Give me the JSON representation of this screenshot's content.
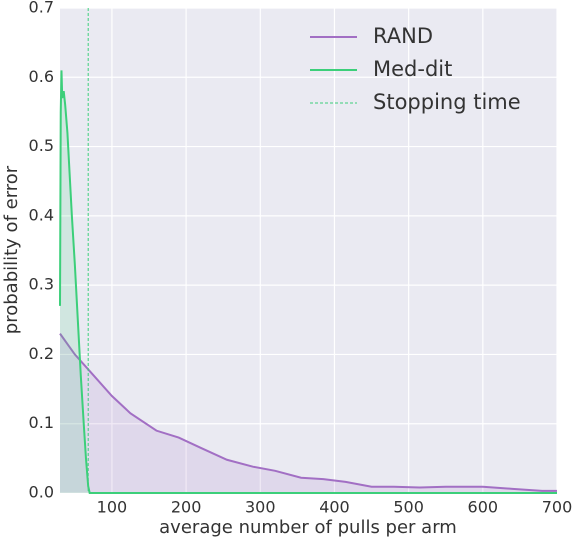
{
  "chart_data": {
    "type": "line",
    "x_label": "average number of pulls per arm",
    "y_label": "probability of error",
    "xlim": [
      30,
      700
    ],
    "ylim": [
      0,
      0.7
    ],
    "xticks": [
      100,
      200,
      300,
      400,
      500,
      600,
      700
    ],
    "yticks": [
      {
        "value": 0,
        "label": "0.0"
      },
      0.1,
      0.2,
      0.3,
      0.4,
      0.5,
      0.6,
      0.7
    ],
    "grid": true,
    "fill_under": true,
    "legend": "upper right",
    "series": [
      {
        "name": "RAND",
        "color": "#a26fc4",
        "x": [
          30,
          50,
          75,
          100,
          125,
          160,
          190,
          220,
          255,
          290,
          320,
          355,
          385,
          415,
          450,
          480,
          515,
          550,
          600,
          640,
          680,
          700
        ],
        "values": [
          0.23,
          0.2,
          0.17,
          0.14,
          0.115,
          0.09,
          0.08,
          0.065,
          0.048,
          0.038,
          0.032,
          0.022,
          0.02,
          0.016,
          0.009,
          0.009,
          0.008,
          0.009,
          0.009,
          0.006,
          0.003,
          0.003
        ]
      },
      {
        "name": "Med-dit",
        "color": "#3ccf7a",
        "x": [
          30,
          31,
          32,
          33,
          35,
          37,
          40,
          43,
          46,
          50,
          54,
          58,
          62,
          65,
          68,
          70,
          100,
          300,
          500,
          700
        ],
        "values": [
          0.27,
          0.55,
          0.61,
          0.57,
          0.58,
          0.56,
          0.52,
          0.46,
          0.4,
          0.33,
          0.25,
          0.17,
          0.1,
          0.05,
          0.01,
          0,
          0,
          0,
          0,
          0
        ]
      }
    ],
    "vlines": [
      {
        "name": "Stopping time",
        "x": 68,
        "color": "#3ccf7a"
      }
    ]
  }
}
